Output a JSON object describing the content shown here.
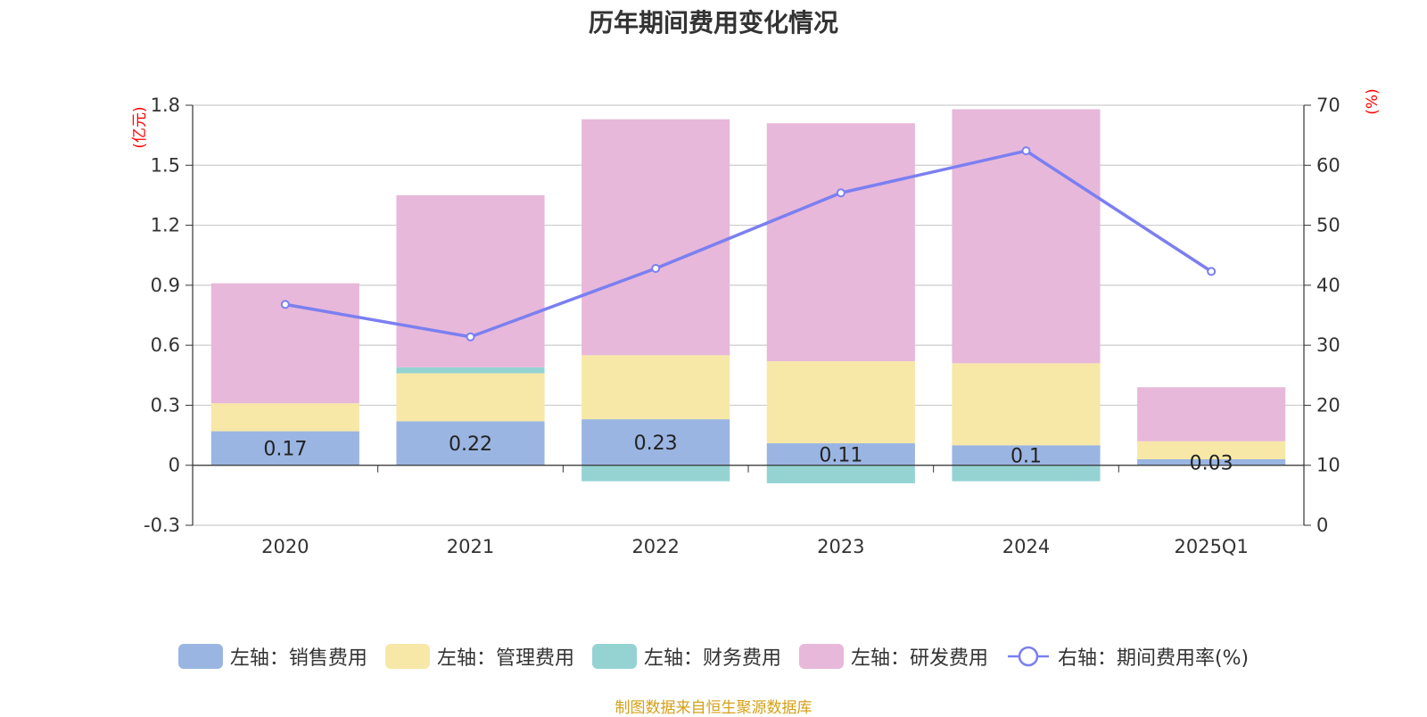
{
  "chart_data": {
    "type": "bar",
    "stacked": true,
    "title": "历年期间费用变化情况",
    "categories": [
      "2020",
      "2021",
      "2022",
      "2023",
      "2024",
      "2025Q1"
    ],
    "left_axis": {
      "unit": "(亿元)",
      "ylim": [
        -0.3,
        1.8
      ],
      "ticks": [
        "-0.3",
        "0",
        "0.3",
        "0.6",
        "0.9",
        "1.2",
        "1.5",
        "1.8"
      ]
    },
    "right_axis": {
      "unit": "(%)",
      "ylim": [
        0,
        70
      ],
      "ticks": [
        "0",
        "10",
        "20",
        "30",
        "40",
        "50",
        "60",
        "70"
      ]
    },
    "series": [
      {
        "name": "左轴：销售费用",
        "axis": "left",
        "color": "#9ab5e1",
        "values": [
          0.17,
          0.22,
          0.23,
          0.11,
          0.1,
          0.03
        ]
      },
      {
        "name": "左轴：管理费用",
        "axis": "left",
        "color": "#f7e8a8",
        "values": [
          0.14,
          0.24,
          0.32,
          0.41,
          0.41,
          0.09
        ]
      },
      {
        "name": "左轴：财务费用",
        "axis": "left",
        "color": "#95d3d3",
        "values": [
          0.0,
          0.03,
          -0.08,
          -0.09,
          -0.08,
          0.0
        ]
      },
      {
        "name": "左轴：研发费用",
        "axis": "left",
        "color": "#e7b8da",
        "values": [
          0.6,
          0.86,
          1.18,
          1.19,
          1.27,
          0.27
        ]
      },
      {
        "name": "右轴：期间费用率(%)",
        "axis": "right",
        "type": "line",
        "color": "#7b7ff0",
        "values": [
          36.8,
          31.4,
          42.8,
          55.4,
          62.4,
          42.3
        ]
      }
    ],
    "data_labels": [
      "0.17",
      "0.22",
      "0.23",
      "0.11",
      "0.1",
      "0.03"
    ],
    "grid": true,
    "legend_position": "bottom"
  },
  "source_note": "制图数据来自恒生聚源数据库"
}
